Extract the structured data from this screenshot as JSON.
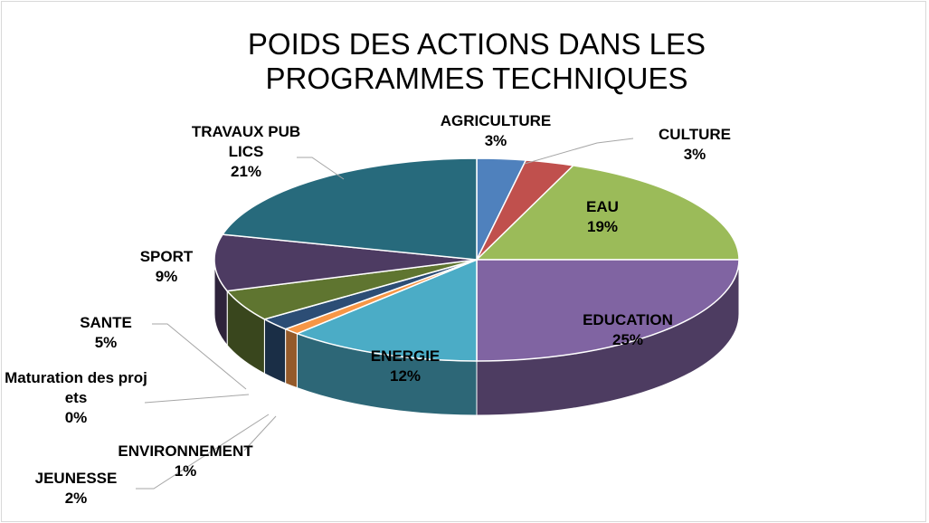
{
  "chart_data": {
    "type": "pie",
    "title": "POIDS DES ACTIONS DANS LES PROGRAMMES TECHNIQUES",
    "categories": [
      "AGRICULTURE",
      "CULTURE",
      "EAU",
      "EDUCATION",
      "ENERGIE",
      "ENVIRONNEMENT",
      "JEUNESSE",
      "Maturation des projets",
      "SANTE",
      "SPORT",
      "TRAVAUX PUBLICS"
    ],
    "values": [
      3,
      3,
      19,
      25,
      12,
      1,
      2,
      0,
      5,
      9,
      21
    ],
    "value_labels": [
      "3%",
      "3%",
      "19%",
      "25%",
      "12%",
      "1%",
      "2%",
      "0%",
      "5%",
      "9%",
      "21%"
    ],
    "colors": [
      "#4f81bd",
      "#c0504d",
      "#9bbb59",
      "#8064a2",
      "#4bacc6",
      "#f79646",
      "#2c4d75",
      "#772c2a",
      "#5f7530",
      "#4d3b62",
      "#276a7c"
    ]
  }
}
